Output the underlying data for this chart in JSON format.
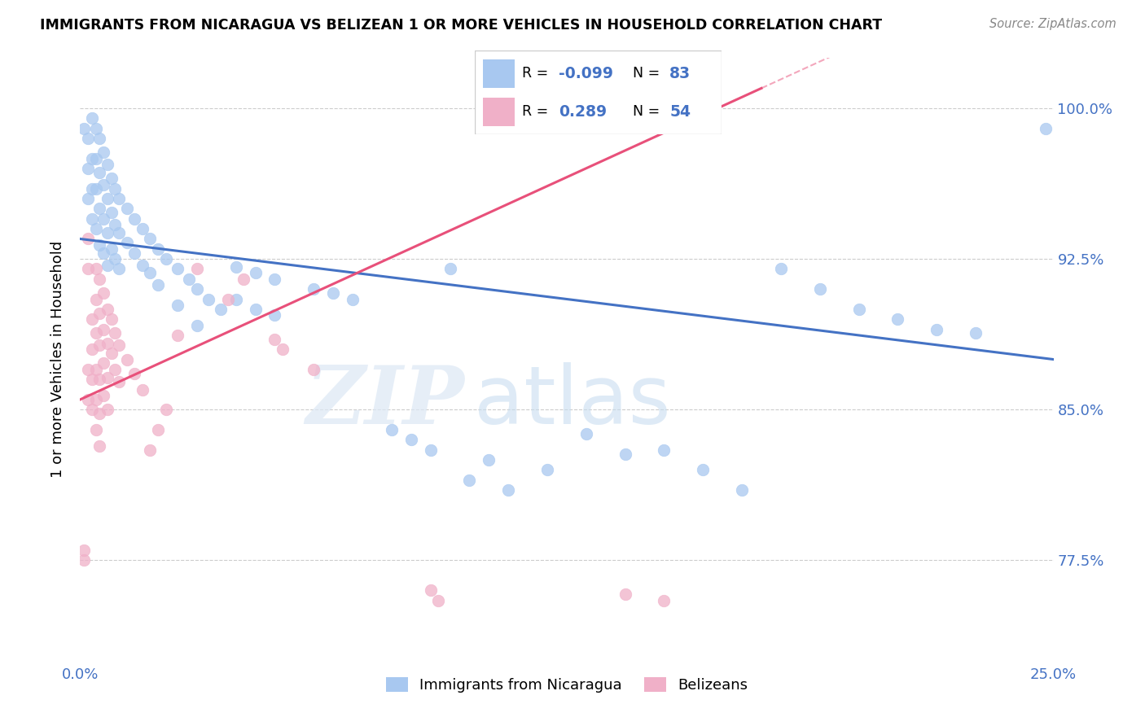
{
  "title": "IMMIGRANTS FROM NICARAGUA VS BELIZEAN 1 OR MORE VEHICLES IN HOUSEHOLD CORRELATION CHART",
  "source": "Source: ZipAtlas.com",
  "ylabel": "1 or more Vehicles in Household",
  "yticks": [
    "77.5%",
    "85.0%",
    "92.5%",
    "100.0%"
  ],
  "ytick_vals": [
    0.775,
    0.85,
    0.925,
    1.0
  ],
  "xlim": [
    0.0,
    0.25
  ],
  "ylim": [
    0.725,
    1.025
  ],
  "r_blue": -0.099,
  "n_blue": 83,
  "r_pink": 0.289,
  "n_pink": 54,
  "blue_color": "#a8c8f0",
  "pink_color": "#f0b0c8",
  "blue_line_color": "#4472c4",
  "pink_line_color": "#e8507a",
  "watermark_zip": "ZIP",
  "watermark_atlas": "atlas",
  "legend_label_blue": "Immigrants from Nicaragua",
  "legend_label_pink": "Belizeans",
  "blue_line_x0": 0.0,
  "blue_line_y0": 0.935,
  "blue_line_x1": 0.25,
  "blue_line_y1": 0.875,
  "pink_line_x0": 0.0,
  "pink_line_y0": 0.855,
  "pink_line_x1": 0.175,
  "pink_line_y1": 1.01,
  "xtick_positions": [
    0.0,
    0.05,
    0.1,
    0.15,
    0.2,
    0.25
  ],
  "xtick_labels": [
    "0.0%",
    "",
    "",
    "",
    "",
    "25.0%"
  ]
}
